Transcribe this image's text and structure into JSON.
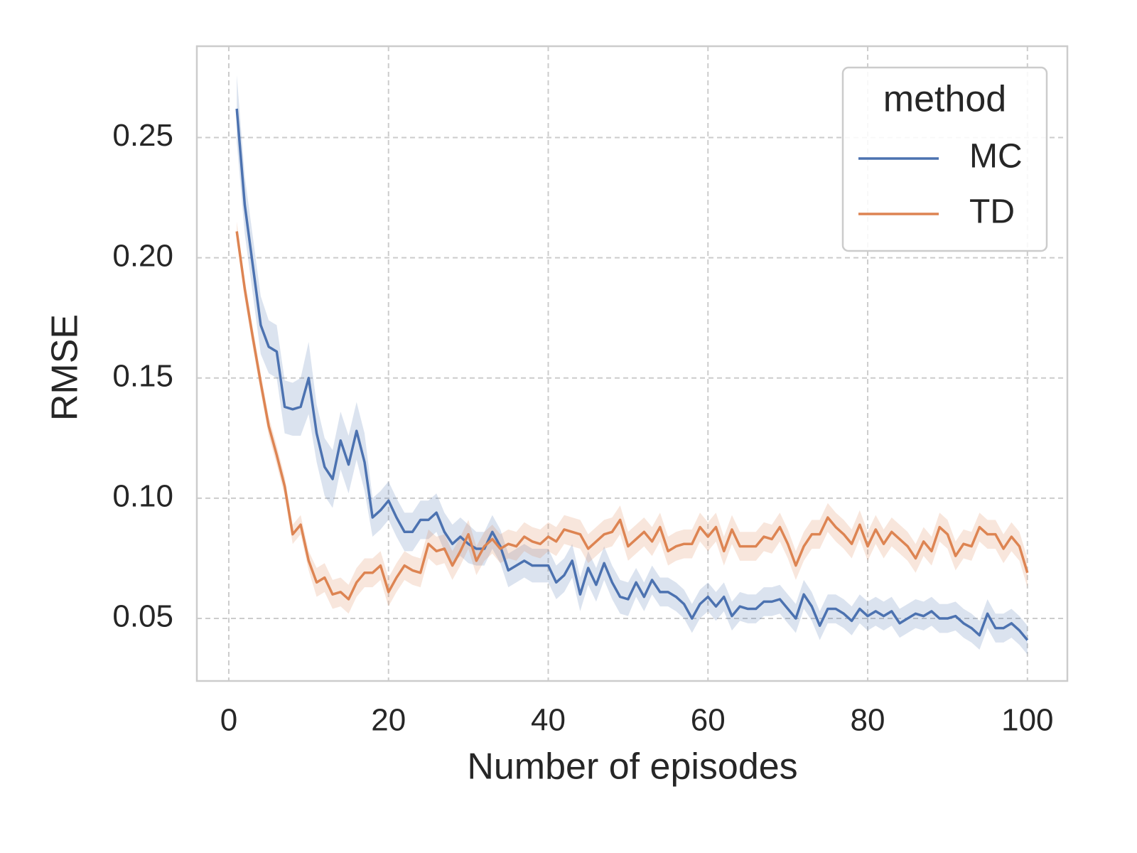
{
  "chart_data": {
    "type": "line",
    "x_label": "Number of episodes",
    "y_label": "RMSE",
    "legend_title": "method",
    "legend": "upper right",
    "grid": true,
    "x": [
      1,
      2,
      3,
      4,
      5,
      6,
      7,
      8,
      9,
      10,
      11,
      12,
      13,
      14,
      15,
      16,
      17,
      18,
      19,
      20,
      21,
      22,
      23,
      24,
      25,
      26,
      27,
      28,
      29,
      30,
      31,
      32,
      33,
      34,
      35,
      36,
      37,
      38,
      39,
      40,
      41,
      42,
      43,
      44,
      45,
      46,
      47,
      48,
      49,
      50,
      51,
      52,
      53,
      54,
      55,
      56,
      57,
      58,
      59,
      60,
      61,
      62,
      63,
      64,
      65,
      66,
      67,
      68,
      69,
      70,
      71,
      72,
      73,
      74,
      75,
      76,
      77,
      78,
      79,
      80,
      81,
      82,
      83,
      84,
      85,
      86,
      87,
      88,
      89,
      90,
      91,
      92,
      93,
      94,
      95,
      96,
      97,
      98,
      99,
      100
    ],
    "series": [
      {
        "name": "MC",
        "color": "#4c72b0",
        "values": [
          0.262,
          0.222,
          0.197,
          0.172,
          0.163,
          0.161,
          0.138,
          0.137,
          0.138,
          0.15,
          0.127,
          0.113,
          0.108,
          0.124,
          0.114,
          0.128,
          0.115,
          0.092,
          0.095,
          0.099,
          0.092,
          0.086,
          0.086,
          0.091,
          0.091,
          0.094,
          0.086,
          0.081,
          0.084,
          0.081,
          0.079,
          0.079,
          0.086,
          0.08,
          0.07,
          0.072,
          0.074,
          0.072,
          0.072,
          0.072,
          0.065,
          0.068,
          0.074,
          0.06,
          0.071,
          0.064,
          0.073,
          0.065,
          0.059,
          0.058,
          0.065,
          0.059,
          0.066,
          0.061,
          0.061,
          0.059,
          0.056,
          0.05,
          0.056,
          0.059,
          0.055,
          0.059,
          0.051,
          0.055,
          0.054,
          0.054,
          0.057,
          0.057,
          0.058,
          0.054,
          0.05,
          0.06,
          0.055,
          0.047,
          0.054,
          0.054,
          0.052,
          0.049,
          0.054,
          0.051,
          0.053,
          0.051,
          0.053,
          0.048,
          0.05,
          0.052,
          0.051,
          0.053,
          0.05,
          0.05,
          0.051,
          0.048,
          0.046,
          0.043,
          0.052,
          0.046,
          0.046,
          0.048,
          0.045,
          0.041
        ],
        "errors": [
          0.014,
          0.012,
          0.012,
          0.012,
          0.011,
          0.011,
          0.011,
          0.011,
          0.012,
          0.015,
          0.012,
          0.012,
          0.012,
          0.012,
          0.012,
          0.012,
          0.012,
          0.008,
          0.008,
          0.008,
          0.008,
          0.008,
          0.008,
          0.008,
          0.008,
          0.008,
          0.008,
          0.008,
          0.008,
          0.008,
          0.007,
          0.007,
          0.007,
          0.007,
          0.007,
          0.007,
          0.007,
          0.007,
          0.007,
          0.007,
          0.007,
          0.007,
          0.007,
          0.007,
          0.007,
          0.007,
          0.007,
          0.007,
          0.007,
          0.007,
          0.006,
          0.006,
          0.006,
          0.006,
          0.006,
          0.006,
          0.006,
          0.006,
          0.006,
          0.006,
          0.006,
          0.006,
          0.006,
          0.006,
          0.006,
          0.006,
          0.006,
          0.006,
          0.006,
          0.006,
          0.006,
          0.006,
          0.006,
          0.006,
          0.006,
          0.006,
          0.006,
          0.006,
          0.006,
          0.006,
          0.006,
          0.006,
          0.006,
          0.006,
          0.006,
          0.006,
          0.006,
          0.006,
          0.006,
          0.006,
          0.006,
          0.006,
          0.006,
          0.006,
          0.006,
          0.006,
          0.006,
          0.006,
          0.006,
          0.006
        ]
      },
      {
        "name": "TD",
        "color": "#dd8452",
        "values": [
          0.211,
          0.187,
          0.167,
          0.148,
          0.13,
          0.118,
          0.105,
          0.085,
          0.089,
          0.074,
          0.065,
          0.067,
          0.06,
          0.061,
          0.058,
          0.065,
          0.069,
          0.069,
          0.072,
          0.061,
          0.067,
          0.072,
          0.07,
          0.069,
          0.081,
          0.078,
          0.079,
          0.072,
          0.078,
          0.085,
          0.074,
          0.08,
          0.083,
          0.079,
          0.081,
          0.08,
          0.084,
          0.082,
          0.081,
          0.084,
          0.082,
          0.087,
          0.086,
          0.085,
          0.079,
          0.082,
          0.085,
          0.086,
          0.091,
          0.08,
          0.083,
          0.086,
          0.082,
          0.088,
          0.078,
          0.08,
          0.081,
          0.081,
          0.088,
          0.084,
          0.088,
          0.078,
          0.087,
          0.08,
          0.08,
          0.08,
          0.084,
          0.083,
          0.088,
          0.081,
          0.072,
          0.08,
          0.085,
          0.085,
          0.092,
          0.088,
          0.085,
          0.081,
          0.089,
          0.08,
          0.087,
          0.081,
          0.086,
          0.083,
          0.08,
          0.075,
          0.082,
          0.078,
          0.088,
          0.085,
          0.076,
          0.081,
          0.08,
          0.088,
          0.085,
          0.085,
          0.079,
          0.084,
          0.08,
          0.069
        ],
        "errors": [
          0.004,
          0.004,
          0.004,
          0.004,
          0.004,
          0.004,
          0.004,
          0.004,
          0.004,
          0.004,
          0.006,
          0.006,
          0.006,
          0.006,
          0.006,
          0.006,
          0.006,
          0.006,
          0.006,
          0.006,
          0.006,
          0.006,
          0.006,
          0.006,
          0.006,
          0.006,
          0.006,
          0.006,
          0.006,
          0.006,
          0.006,
          0.006,
          0.006,
          0.006,
          0.006,
          0.006,
          0.006,
          0.006,
          0.006,
          0.006,
          0.006,
          0.006,
          0.006,
          0.006,
          0.006,
          0.006,
          0.006,
          0.006,
          0.006,
          0.006,
          0.006,
          0.006,
          0.006,
          0.006,
          0.006,
          0.006,
          0.006,
          0.006,
          0.006,
          0.006,
          0.006,
          0.006,
          0.006,
          0.006,
          0.006,
          0.006,
          0.006,
          0.006,
          0.006,
          0.006,
          0.006,
          0.006,
          0.006,
          0.006,
          0.006,
          0.006,
          0.006,
          0.006,
          0.006,
          0.006,
          0.006,
          0.006,
          0.006,
          0.006,
          0.006,
          0.006,
          0.006,
          0.006,
          0.006,
          0.006,
          0.006,
          0.006,
          0.006,
          0.006,
          0.006,
          0.006,
          0.006,
          0.006,
          0.006,
          0.006
        ]
      }
    ],
    "xlim": [
      -4,
      105
    ],
    "xticks": [
      0,
      20,
      40,
      60,
      80,
      100
    ],
    "ylim": [
      0.024,
      0.288
    ],
    "yticks": [
      0.05,
      {
        "value": 0.1,
        "label": "0.10"
      },
      0.15,
      {
        "value": 0.2,
        "label": "0.20"
      },
      0.25
    ]
  }
}
